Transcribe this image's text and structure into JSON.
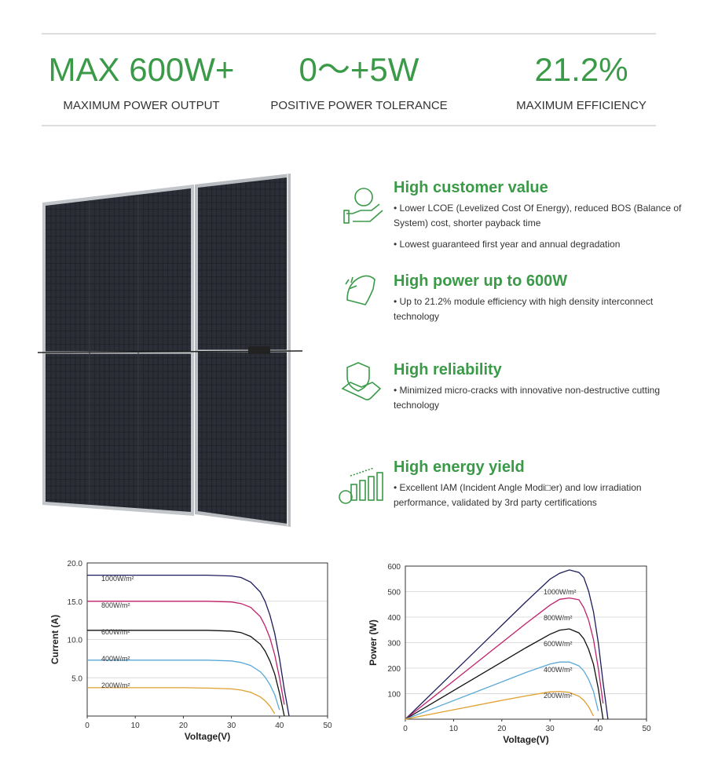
{
  "stats": [
    {
      "value": "MAX 600W+",
      "label": "MAXIMUM POWER OUTPUT"
    },
    {
      "value": "0～+5W",
      "label": "POSITIVE POWER TOLERANCE"
    },
    {
      "value": "21.2%",
      "label": "MAXIMUM EFFICIENCY"
    }
  ],
  "features": [
    {
      "title": "High customer value",
      "items": [
        "• Lower LCOE (Levelized Cost Of Energy), reduced BOS (Balance of System) cost, shorter payback time",
        "• Lowest guaranteed first year and annual degradation"
      ]
    },
    {
      "title": "High power up to 600W",
      "items": [
        "• Up to 21.2% module efficiency with high density interconnect technology"
      ]
    },
    {
      "title": "High reliability",
      "items": [
        "• Minimized micro-cracks with innovative non-destructive cutting technology"
      ]
    },
    {
      "title": "High energy yield",
      "items": [
        "• Excellent IAM (Incident Angle Modi□er) and low irradiation performance, validated by 3rd party certifications"
      ]
    }
  ],
  "chart_data": [
    {
      "type": "line",
      "x_label": "Voltage(V)",
      "y_label": "Current (A)",
      "x": [
        0,
        10,
        20,
        25,
        30,
        32,
        34,
        36,
        37,
        38,
        39,
        40,
        41,
        42
      ],
      "xlim": [
        0,
        50
      ],
      "ylim": [
        0,
        20
      ],
      "xticks": [
        0,
        10,
        20,
        30,
        40,
        50
      ],
      "yticks": [
        {
          "value": 5,
          "label": "5.0"
        },
        {
          "value": 10,
          "label": "10.0"
        },
        {
          "value": 15,
          "label": "15.0"
        },
        {
          "value": 20,
          "label": "20.0"
        }
      ],
      "grid": true,
      "series": [
        {
          "name": "1000W/m²",
          "color": "#1c1c5c",
          "values": [
            18.4,
            18.4,
            18.4,
            18.4,
            18.3,
            18.1,
            17.5,
            16.2,
            15,
            13.2,
            10.8,
            7.5,
            3.5,
            0
          ]
        },
        {
          "name": "800W/m²",
          "color": "#c0206a",
          "values": [
            15,
            15,
            15,
            15,
            14.9,
            14.7,
            14.2,
            13,
            11.8,
            10.2,
            8,
            5,
            1.5,
            null
          ]
        },
        {
          "name": "600W/m²",
          "color": "#111111",
          "values": [
            11.2,
            11.2,
            11.2,
            11.2,
            11.1,
            10.9,
            10.4,
            9.4,
            8.5,
            7.2,
            5.5,
            3,
            0,
            null
          ]
        },
        {
          "name": "400W/m²",
          "color": "#5aa8d8",
          "values": [
            7.3,
            7.3,
            7.3,
            7.3,
            7.2,
            7,
            6.6,
            5.8,
            5.1,
            4.1,
            2.8,
            0.8,
            null,
            null
          ]
        },
        {
          "name": "200W/m²",
          "color": "#e0a030",
          "values": [
            3.7,
            3.7,
            3.7,
            3.65,
            3.55,
            3.4,
            3.1,
            2.5,
            2,
            1.3,
            0.3,
            null,
            null,
            null
          ]
        }
      ]
    },
    {
      "type": "line",
      "x_label": "Voltage(V)",
      "y_label": "Power (W)",
      "x": [
        0,
        10,
        20,
        25,
        30,
        32,
        34,
        36,
        37,
        38,
        39,
        40,
        41,
        42
      ],
      "xlim": [
        0,
        50
      ],
      "ylim": [
        0,
        600
      ],
      "xticks": [
        0,
        10,
        20,
        30,
        40,
        50
      ],
      "yticks": [
        100,
        200,
        300,
        400,
        500,
        600
      ],
      "grid": true,
      "series": [
        {
          "name": "1000W/m²",
          "color": "#1c1c5c",
          "values": [
            0,
            184,
            368,
            460,
            549,
            572,
            585,
            575,
            555,
            502,
            421,
            300,
            144,
            0
          ]
        },
        {
          "name": "800W/m²",
          "color": "#c0206a",
          "values": [
            0,
            150,
            300,
            375,
            447,
            470,
            475,
            468,
            437,
            388,
            312,
            200,
            62,
            null
          ]
        },
        {
          "name": "600W/m²",
          "color": "#111111",
          "values": [
            0,
            112,
            224,
            280,
            333,
            349,
            354,
            338,
            315,
            274,
            215,
            120,
            0,
            null
          ]
        },
        {
          "name": "400W/m²",
          "color": "#5aa8d8",
          "values": [
            0,
            73,
            146,
            183,
            216,
            224,
            224,
            209,
            189,
            156,
            109,
            32,
            null,
            null
          ]
        },
        {
          "name": "200W/m²",
          "color": "#e0a030",
          "values": [
            0,
            37,
            74,
            91,
            107,
            109,
            105,
            90,
            74,
            49,
            12,
            null,
            null,
            null
          ]
        }
      ]
    }
  ]
}
